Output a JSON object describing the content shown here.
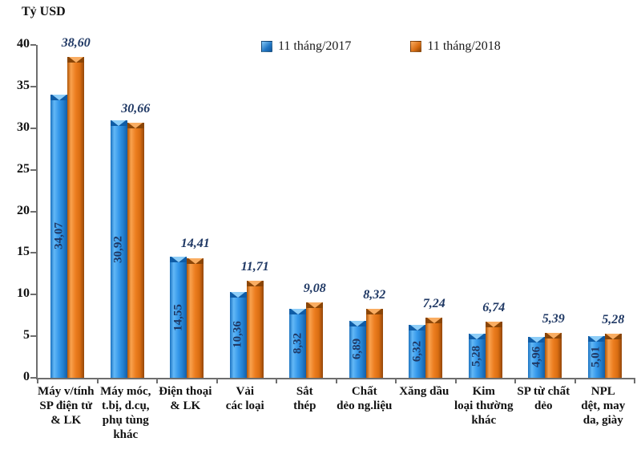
{
  "unit_label": "Tỷ USD",
  "legend": {
    "items": [
      {
        "label": "11 tháng/2017",
        "color": "#2f92e5"
      },
      {
        "label": "11 tháng/2018",
        "color": "#ec7d1f"
      }
    ]
  },
  "chart_data": {
    "type": "bar",
    "title": "",
    "ylabel": "Tỷ USD",
    "xlabel": "",
    "ylim": [
      0,
      40
    ],
    "yticks": [
      0,
      5,
      10,
      15,
      20,
      25,
      30,
      35,
      40
    ],
    "grid": false,
    "legend_position": "top",
    "decimal_separator": ",",
    "categories": [
      "Máy v/tính\nSP điện tử\n& LK",
      "Máy móc,\nt.bị, d.cụ,\nphụ tùng\nkhác",
      "Điện thoại\n& LK",
      "Vải\ncác loại",
      "Sắt\nthép",
      "Chất\ndẻo ng.liệu",
      "Xăng dầu",
      "Kim\nloại thường\nkhác",
      "SP từ chất\ndẻo",
      "NPL\ndệt, may\nda, giày"
    ],
    "series": [
      {
        "name": "11 tháng/2017",
        "color": "#2f92e5",
        "values": [
          34.07,
          30.92,
          14.55,
          10.36,
          8.32,
          6.89,
          6.32,
          5.28,
          4.96,
          5.01
        ],
        "labels": [
          "34,07",
          "30,92",
          "14,55",
          "10,36",
          "8,32",
          "6,89",
          "6,32",
          "5,28",
          "4,96",
          "5,01"
        ]
      },
      {
        "name": "11 tháng/2018",
        "color": "#ec7d1f",
        "values": [
          38.6,
          30.66,
          14.41,
          11.71,
          9.08,
          8.32,
          7.24,
          6.74,
          5.39,
          5.28
        ],
        "labels": [
          "38,60",
          "30,66",
          "14,41",
          "11,71",
          "9,08",
          "8,32",
          "7,24",
          "6,74",
          "5,39",
          "5,28"
        ]
      }
    ]
  }
}
